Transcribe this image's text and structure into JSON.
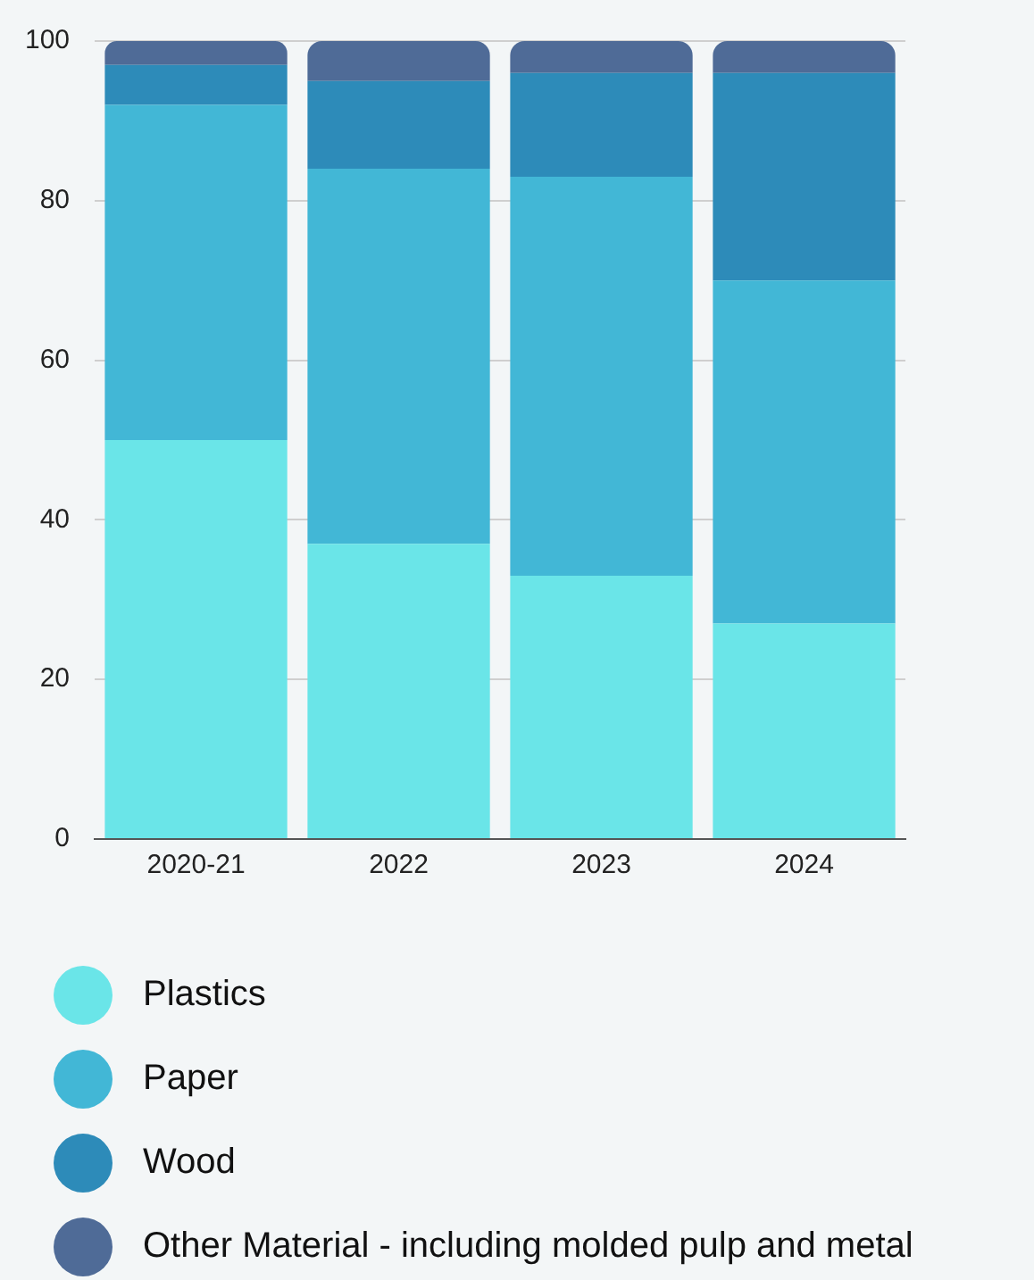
{
  "chart_data": {
    "type": "bar",
    "stacked": true,
    "categories": [
      "2020-21",
      "2022",
      "2023",
      "2024"
    ],
    "series": [
      {
        "name": "Plastics",
        "color": "#6ae5e8",
        "values": [
          50,
          37,
          33,
          27
        ]
      },
      {
        "name": "Paper",
        "color": "#42b7d6",
        "values": [
          42,
          47,
          50,
          43
        ]
      },
      {
        "name": "Wood",
        "color": "#2d8bb9",
        "values": [
          5,
          11,
          13,
          26
        ]
      },
      {
        "name": "Other Material - including molded pulp and metal",
        "color": "#4f6b97",
        "values": [
          3,
          5,
          4,
          4
        ]
      }
    ],
    "ylim": [
      0,
      100
    ],
    "yticks": [
      0,
      20,
      40,
      60,
      80,
      100
    ],
    "grid": "y",
    "legend": "bottom"
  }
}
